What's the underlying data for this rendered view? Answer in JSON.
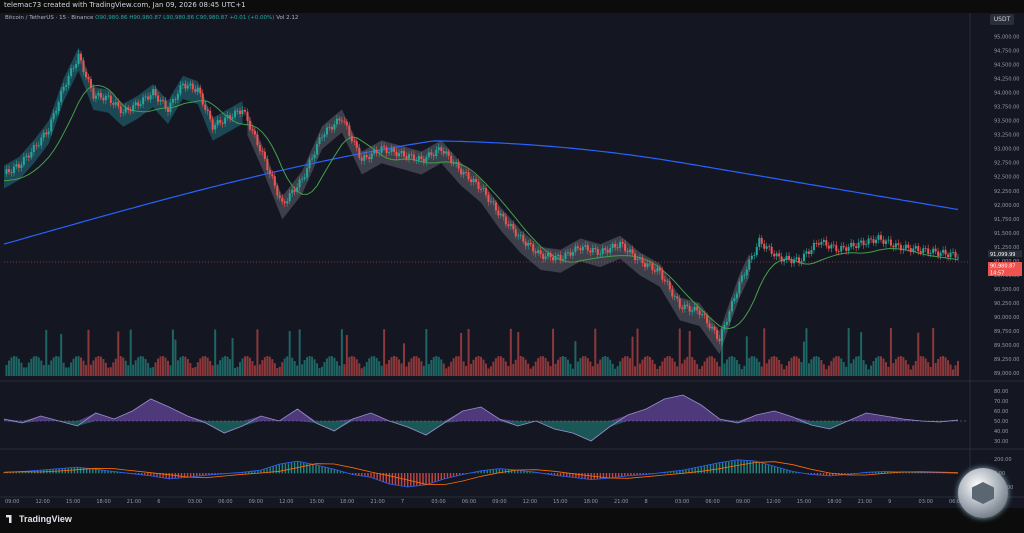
{
  "header": {
    "caption": "telemac73 created with TradingView.com, Jan 09, 2026 08:45 UTC+1"
  },
  "legend": {
    "text": "Bitcoin / TetherUS · 15 · Binance",
    "ohlc": "O90,980.86 H90,980.87 L90,980.86 C90,980.87 +0.01 (+0.00%)",
    "vol": "Vol 2.12"
  },
  "currency": "USDT",
  "footer": {
    "brand": "TradingView"
  },
  "colors": {
    "up": "#26a69a",
    "down": "#ef5350",
    "blue_ma": "#2962ff",
    "green_ma": "#43a047",
    "cloud_teal": "#1e5a66",
    "cloud_gray": "#4b4f5a",
    "rsi": "#7e57c2"
  },
  "chart_data": [
    {
      "type": "line",
      "title": "Bitcoin / TetherUS · 15 · Binance",
      "x_ticks": [
        "09:00",
        "12:00",
        "15:00",
        "18:00",
        "21:00",
        "6",
        "03:00",
        "06:00",
        "09:00",
        "12:00",
        "15:00",
        "18:00",
        "21:00",
        "7",
        "03:00",
        "06:00",
        "09:00",
        "12:00",
        "15:00",
        "18:00",
        "21:00",
        "8",
        "03:00",
        "06:00",
        "09:00",
        "12:00",
        "15:00",
        "18:00",
        "21:00",
        "9",
        "03:00",
        "06:00"
      ],
      "y_ticks": [
        "95,000.00",
        "94,750.00",
        "94,500.00",
        "94,250.00",
        "94,000.00",
        "93,750.00",
        "93,500.00",
        "93,250.00",
        "93,000.00",
        "92,750.00",
        "92,500.00",
        "92,250.00",
        "92,000.00",
        "91,750.00",
        "91,500.00",
        "91,250.00",
        "91,000.00",
        "90,750.00",
        "90,500.00",
        "90,250.00",
        "90,000.00",
        "89,750.00",
        "89,500.00",
        "89,250.00",
        "89,000.00"
      ],
      "ylim": [
        88950,
        95150
      ],
      "series": [
        {
          "name": "",
          "x": [
            0,
            6,
            12,
            18,
            24,
            30,
            36,
            42,
            48,
            54,
            60,
            66,
            72,
            78,
            84,
            90,
            96
          ],
          "values": [
            92550,
            92700,
            93000,
            93350,
            94100,
            94650,
            93950,
            93900,
            93650,
            93800,
            94000,
            93700,
            94150,
            94050,
            93400,
            93550,
            93700
          ]
        },
        {
          "name": "",
          "x": [
            96,
            104,
            112,
            120,
            128,
            136,
            144,
            152,
            160,
            168,
            176,
            184,
            192
          ],
          "values": [
            93700,
            92900,
            92000,
            92450,
            93250,
            93550,
            92800,
            93000,
            92900,
            92800,
            93000,
            92600,
            92300
          ]
        },
        {
          "name": "",
          "x": [
            192,
            200,
            208,
            216,
            224,
            232,
            240,
            248,
            256,
            264,
            272,
            280,
            288
          ],
          "values": [
            92300,
            91800,
            91400,
            91100,
            91050,
            91250,
            91150,
            91300,
            91000,
            90800,
            90200,
            90100,
            89600
          ]
        },
        {
          "name": "",
          "x": [
            288,
            296,
            304,
            312,
            320,
            328,
            336,
            344,
            352,
            360,
            368,
            376,
            384
          ],
          "values": [
            89600,
            90600,
            91350,
            91050,
            91000,
            91350,
            91200,
            91300,
            91400,
            91250,
            91200,
            91150,
            91100
          ]
        }
      ],
      "price_labels": [
        {
          "text": "91,099.99",
          "color": "#2a2e39"
        },
        {
          "text": "90,980.87",
          "color": "#ef5350"
        },
        {
          "text": "14:57",
          "color": "#ef5350"
        }
      ]
    },
    {
      "type": "line",
      "title": "",
      "y_ticks": [
        "80.00",
        "70.00",
        "60.00",
        "50.00",
        "40.00",
        "30.00"
      ],
      "ylim": [
        25,
        85
      ],
      "values": [
        52,
        48,
        55,
        50,
        45,
        58,
        52,
        60,
        72,
        64,
        55,
        48,
        38,
        45,
        55,
        50,
        62,
        48,
        40,
        52,
        58,
        50,
        44,
        36,
        48,
        60,
        64,
        52,
        45,
        50,
        42,
        38,
        30,
        44,
        56,
        62,
        72,
        76,
        66,
        52,
        48,
        56,
        60,
        54,
        46,
        42,
        50,
        58,
        55,
        52,
        50,
        49,
        51
      ]
    },
    {
      "type": "bar",
      "title": "",
      "y_ticks": [
        "200.00",
        "0.00",
        "-200.00"
      ],
      "ylim": [
        -300,
        300
      ],
      "values": [
        10,
        20,
        40,
        60,
        80,
        50,
        20,
        -10,
        -40,
        -80,
        -60,
        -30,
        -10,
        10,
        40,
        120,
        160,
        110,
        50,
        -20,
        -60,
        -150,
        -190,
        -160,
        -80,
        -20,
        30,
        60,
        40,
        10,
        -30,
        -60,
        -90,
        -70,
        -40,
        -20,
        10,
        40,
        90,
        140,
        180,
        160,
        90,
        20,
        -20,
        -40,
        -20,
        10,
        20,
        15,
        10,
        5,
        -5
      ]
    }
  ]
}
